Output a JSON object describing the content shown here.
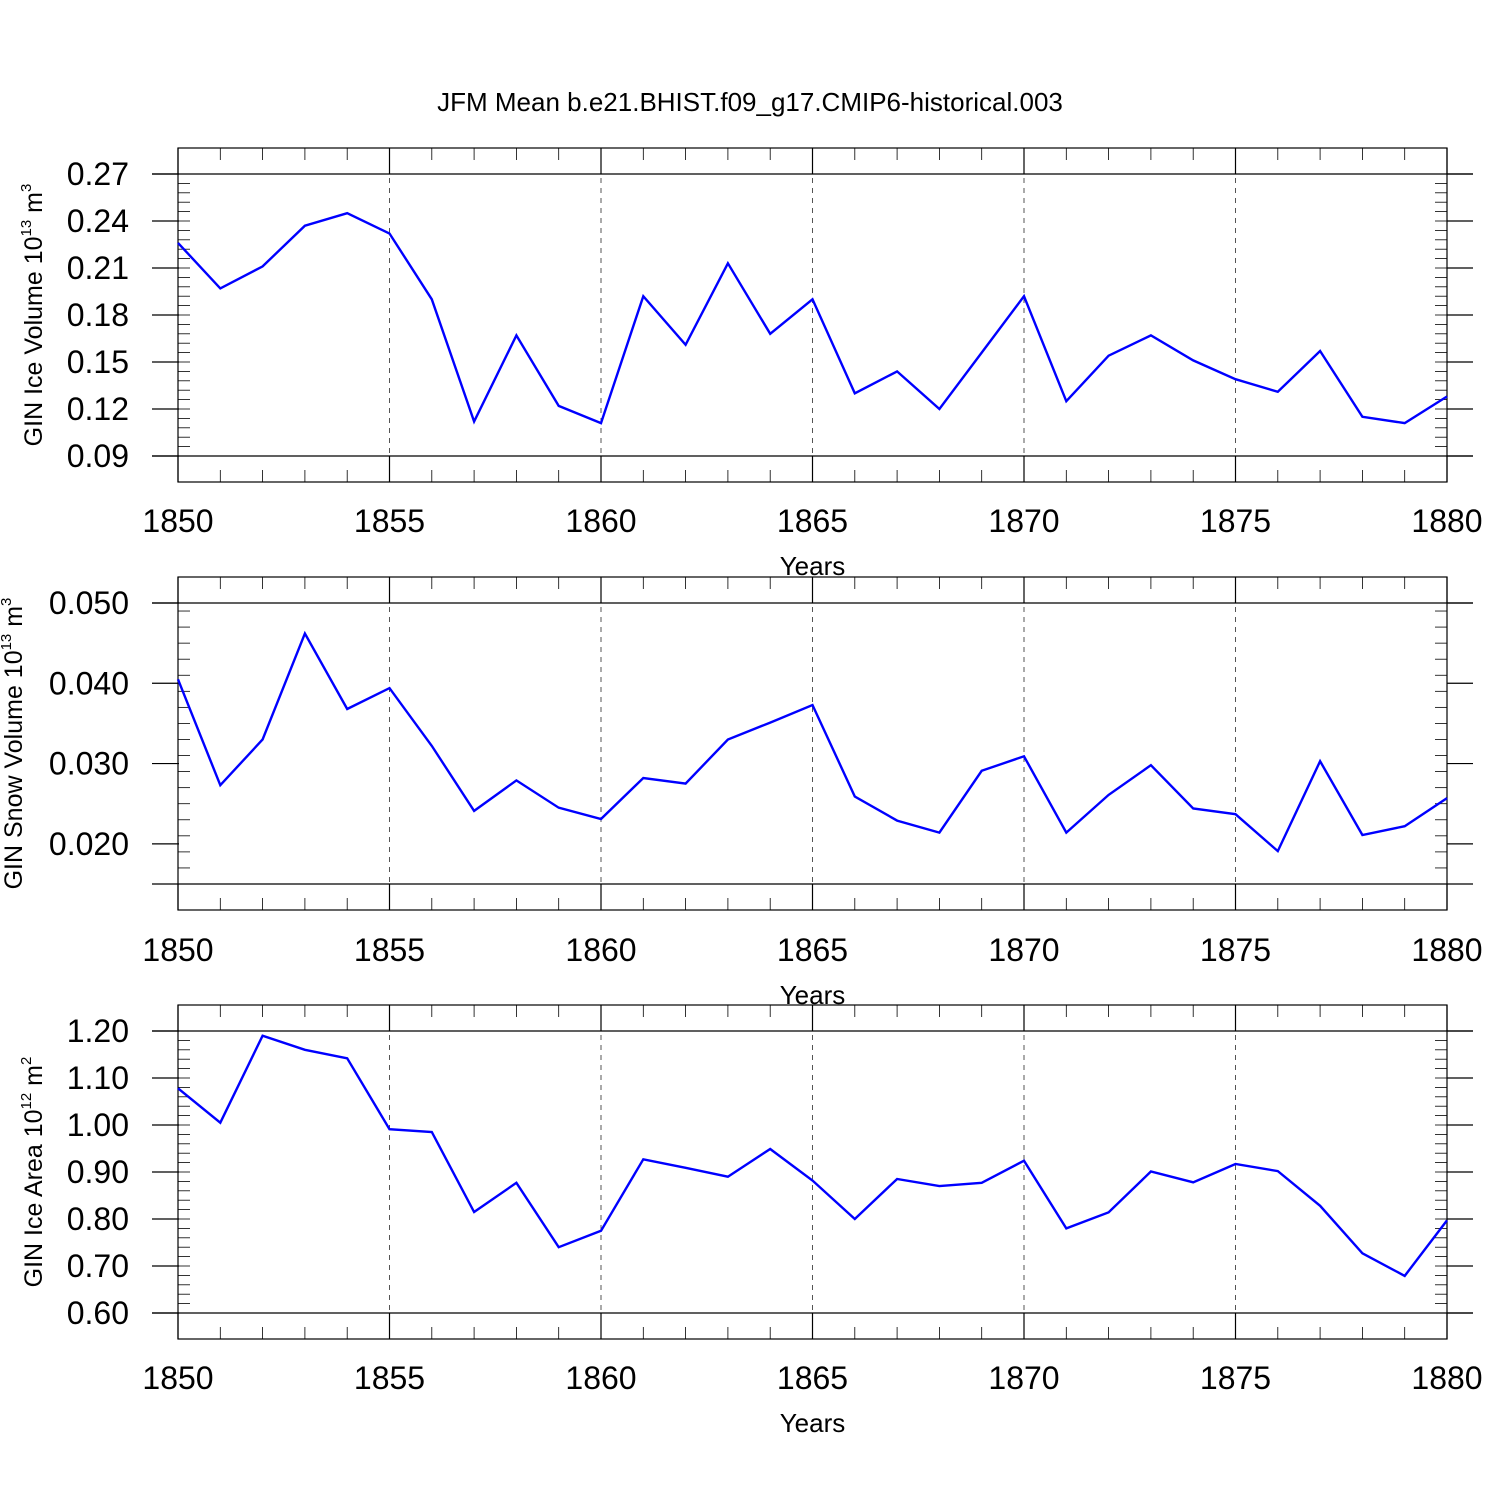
{
  "title": "JFM Mean b.e21.BHIST.f09_g17.CMIP6-historical.003",
  "chart_data": [
    {
      "type": "line",
      "ylabel": {
        "text": "GIN Ice Volume 10",
        "sup": "13",
        "unit": " m",
        "unit_sup": "3"
      },
      "xlabel": "Years",
      "xlim": [
        1850,
        1880
      ],
      "x_ticks": [
        "1850",
        "1855",
        "1860",
        "1865",
        "1870",
        "1875",
        "1880"
      ],
      "ylim": [
        0.09,
        0.27
      ],
      "y_ticks": [
        "0.09",
        "0.12",
        "0.15",
        "0.18",
        "0.21",
        "0.24",
        "0.27"
      ],
      "vgrid": true,
      "color": "#0000ff",
      "x": [
        1850,
        1851,
        1852,
        1853,
        1854,
        1855,
        1856,
        1857,
        1858,
        1859,
        1860,
        1861,
        1862,
        1863,
        1864,
        1865,
        1866,
        1867,
        1868,
        1869,
        1870,
        1871,
        1872,
        1873,
        1874,
        1875,
        1876,
        1877,
        1878,
        1879,
        1880
      ],
      "values": [
        0.226,
        0.197,
        0.211,
        0.237,
        0.245,
        0.232,
        0.19,
        0.112,
        0.167,
        0.122,
        0.111,
        0.192,
        0.161,
        0.213,
        0.168,
        0.19,
        0.13,
        0.144,
        0.12,
        0.156,
        0.192,
        0.125,
        0.154,
        0.167,
        0.151,
        0.139,
        0.131,
        0.157,
        0.115,
        0.111,
        0.128
      ]
    },
    {
      "type": "line",
      "ylabel": {
        "text": "GIN Snow Volume 10",
        "sup": "13",
        "unit": " m",
        "unit_sup": "3"
      },
      "xlabel": "Years",
      "xlim": [
        1850,
        1880
      ],
      "x_ticks": [
        "1850",
        "1855",
        "1860",
        "1865",
        "1870",
        "1875",
        "1880"
      ],
      "ylim": [
        0.015,
        0.05
      ],
      "y_ticks": [
        "0.020",
        "0.030",
        "0.040",
        "0.050"
      ],
      "vgrid": true,
      "color": "#0000ff",
      "x": [
        1850,
        1851,
        1852,
        1853,
        1854,
        1855,
        1856,
        1857,
        1858,
        1859,
        1860,
        1861,
        1862,
        1863,
        1864,
        1865,
        1866,
        1867,
        1868,
        1869,
        1870,
        1871,
        1872,
        1873,
        1874,
        1875,
        1876,
        1877,
        1878,
        1879,
        1880
      ],
      "values": [
        0.0405,
        0.0273,
        0.033,
        0.0462,
        0.0368,
        0.0394,
        0.0322,
        0.0241,
        0.0279,
        0.0245,
        0.0231,
        0.0282,
        0.0275,
        0.033,
        0.0351,
        0.0373,
        0.0259,
        0.0229,
        0.0214,
        0.0291,
        0.0309,
        0.0214,
        0.0261,
        0.0298,
        0.0244,
        0.0237,
        0.0191,
        0.0303,
        0.0211,
        0.0222,
        0.0257
      ]
    },
    {
      "type": "line",
      "ylabel": {
        "text": "GIN Ice Area 10",
        "sup": "12",
        "unit": " m",
        "unit_sup": "2"
      },
      "xlabel": "Years",
      "xlim": [
        1850,
        1880
      ],
      "x_ticks": [
        "1850",
        "1855",
        "1860",
        "1865",
        "1870",
        "1875",
        "1880"
      ],
      "ylim": [
        0.6,
        1.2
      ],
      "y_ticks": [
        "0.60",
        "0.70",
        "0.80",
        "0.90",
        "1.00",
        "1.10",
        "1.20"
      ],
      "vgrid": true,
      "color": "#0000ff",
      "x": [
        1850,
        1851,
        1852,
        1853,
        1854,
        1855,
        1856,
        1857,
        1858,
        1859,
        1860,
        1861,
        1862,
        1863,
        1864,
        1865,
        1866,
        1867,
        1868,
        1869,
        1870,
        1871,
        1872,
        1873,
        1874,
        1875,
        1876,
        1877,
        1878,
        1879,
        1880
      ],
      "values": [
        1.078,
        1.005,
        1.19,
        1.16,
        1.142,
        0.991,
        0.985,
        0.815,
        0.877,
        0.74,
        0.775,
        0.927,
        0.909,
        0.89,
        0.949,
        0.882,
        0.8,
        0.885,
        0.87,
        0.877,
        0.924,
        0.78,
        0.814,
        0.901,
        0.878,
        0.917,
        0.902,
        0.828,
        0.727,
        0.679,
        0.797
      ]
    }
  ]
}
